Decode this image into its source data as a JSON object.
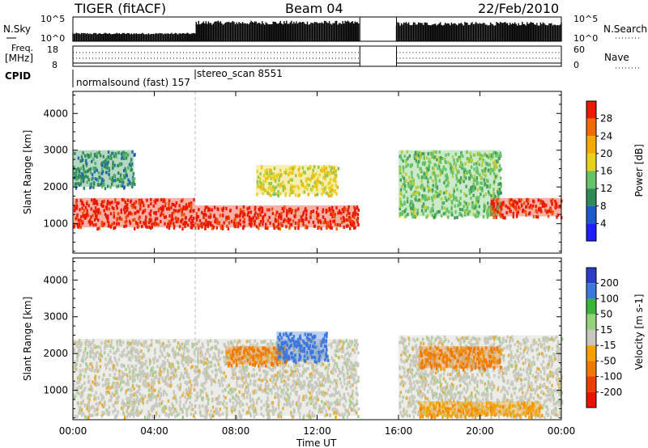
{
  "header": {
    "radar": "TIGER (fitACF)",
    "beam": "Beam 04",
    "date": "22/Feb/2010"
  },
  "strip_labels": {
    "nsky": "N.Sky",
    "nsearch": "N.Search",
    "freq_line1": "Freq.",
    "freq_line2": "[MHz]",
    "nave": "Nave",
    "cpid": "CPID"
  },
  "strip_ticks": {
    "noise_top": "10^5",
    "noise_bottom": "10^0",
    "freq_top": "18",
    "freq_bottom": "8",
    "nave_top": "60",
    "nave_bottom": "0"
  },
  "cpid_annotations": {
    "first": "normalsound (fast) 157",
    "second": "stereo_scan 8551"
  },
  "chart_data": [
    {
      "type": "heatmap",
      "quantity": "power",
      "ylabel": "Slant Range [km]",
      "ylim": [
        200,
        4600
      ],
      "yticks": [
        1000,
        2000,
        3000,
        4000
      ],
      "xlim_hours": [
        0,
        24
      ],
      "data_gap_hours": [
        14.1,
        15.9
      ],
      "colorbar": {
        "label": "Power [dB]",
        "range": [
          0,
          32
        ],
        "ticks": [
          "4",
          "8",
          "12",
          "16",
          "20",
          "24",
          "28"
        ],
        "colors": [
          "#1e1eff",
          "#1e5ac8",
          "#2e8b57",
          "#66c266",
          "#e8d020",
          "#f5a800",
          "#f06a00",
          "#e81a00"
        ]
      },
      "regions": [
        {
          "x0": 0.0,
          "x1": 6.0,
          "y0": 900,
          "y1": 1700,
          "level": 7
        },
        {
          "x0": 0.0,
          "x1": 3.0,
          "y0": 2000,
          "y1": 3000,
          "level": 2
        },
        {
          "x0": 6.0,
          "x1": 14.0,
          "y0": 900,
          "y1": 1500,
          "level": 7
        },
        {
          "x0": 9.0,
          "x1": 13.0,
          "y0": 1800,
          "y1": 2600,
          "level": 4
        },
        {
          "x0": 16.0,
          "x1": 21.0,
          "y0": 1200,
          "y1": 3000,
          "level": 3
        },
        {
          "x0": 20.5,
          "x1": 24.0,
          "y0": 1200,
          "y1": 1700,
          "level": 7
        }
      ]
    },
    {
      "type": "heatmap",
      "quantity": "velocity",
      "ylabel": "Slant Range [km]",
      "ylim": [
        200,
        4600
      ],
      "yticks": [
        1000,
        2000,
        3000,
        4000
      ],
      "xlim_hours": [
        0,
        24
      ],
      "data_gap_hours": [
        14.1,
        15.9
      ],
      "colorbar": {
        "label": "Velocity [m s-1]",
        "levels": [
          250,
          200,
          100,
          50,
          15,
          -15,
          -50,
          -100,
          -200,
          -250
        ],
        "ticks": [
          "200",
          "100",
          "50",
          "15",
          "-15",
          "-50",
          "-100",
          "-200"
        ],
        "colors": [
          "#2a3cc8",
          "#3c78dc",
          "#3cb43c",
          "#96d278",
          "#c8c8be",
          "#f5a000",
          "#f07800",
          "#e84000",
          "#e81400"
        ]
      },
      "regions": [
        {
          "x0": 0.0,
          "x1": 14.0,
          "y0": 300,
          "y1": 2400,
          "value": 0
        },
        {
          "x0": 7.5,
          "x1": 10.5,
          "y0": 1700,
          "y1": 2200,
          "value": -60
        },
        {
          "x0": 10.0,
          "x1": 12.5,
          "y0": 1800,
          "y1": 2600,
          "value": 150
        },
        {
          "x0": 16.0,
          "x1": 24.0,
          "y0": 300,
          "y1": 2500,
          "value": 0
        },
        {
          "x0": 17.0,
          "x1": 21.0,
          "y0": 1600,
          "y1": 2200,
          "value": -60
        },
        {
          "x0": 17.0,
          "x1": 23.0,
          "y0": 300,
          "y1": 700,
          "value": -40
        }
      ]
    }
  ],
  "xaxis": {
    "ticks": [
      "00:00",
      "04:00",
      "08:00",
      "12:00",
      "16:00",
      "20:00",
      "00:00"
    ],
    "tick_hours": [
      0,
      4,
      8,
      12,
      16,
      20,
      24
    ],
    "label": "Time UT"
  }
}
